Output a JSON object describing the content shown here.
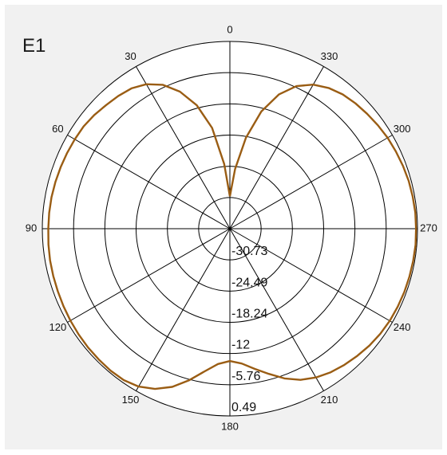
{
  "panel": {
    "title": "E1"
  },
  "chart_data": {
    "type": "polar",
    "title": "E1",
    "angle_labels": [
      "0",
      "30",
      "60",
      "90",
      "120",
      "150",
      "180",
      "210",
      "240",
      "270",
      "300",
      "330"
    ],
    "angle_direction": "counterclockwise",
    "zero_position": "top",
    "radial_ticks": [
      "-30.73",
      "-24.49",
      "-18.24",
      "-12",
      "-5.76",
      "0.49"
    ],
    "radial_range": [
      -36.97,
      0.49
    ],
    "grid": true,
    "series": [
      {
        "color": "#9a5d14",
        "angles_deg": [
          0,
          5,
          10,
          15,
          20,
          25,
          30,
          35,
          40,
          45,
          50,
          55,
          60,
          65,
          70,
          75,
          80,
          85,
          90,
          95,
          100,
          105,
          110,
          115,
          120,
          125,
          130,
          135,
          140,
          145,
          150,
          155,
          160,
          165,
          170,
          175,
          180,
          185,
          190,
          195,
          200,
          205,
          210,
          215,
          220,
          225,
          230,
          235,
          240,
          245,
          250,
          255,
          260,
          265,
          270,
          275,
          280,
          285,
          290,
          295,
          300,
          305,
          310,
          315,
          320,
          325,
          330,
          335,
          340,
          345,
          350,
          355,
          360
        ],
        "values_db": [
          -30.5,
          -24.0,
          -16.5,
          -11.4,
          -7.8,
          -5.2,
          -3.6,
          -2.7,
          -2.3,
          -2.0,
          -1.6,
          -1.3,
          -1.2,
          -1.1,
          -1.0,
          -0.9,
          -0.8,
          -0.75,
          -0.7,
          -0.6,
          -0.5,
          -0.45,
          -0.4,
          -0.3,
          -0.2,
          -0.1,
          0.0,
          0.05,
          0.1,
          0.0,
          -0.5,
          -1.6,
          -3.3,
          -5.6,
          -8.0,
          -9.8,
          -10.5,
          -9.9,
          -8.5,
          -6.9,
          -5.1,
          -3.6,
          -2.6,
          -1.9,
          -1.4,
          -1.0,
          -0.6,
          -0.3,
          -0.1,
          0.0,
          0.1,
          0.15,
          0.2,
          0.25,
          0.2,
          0.2,
          0.1,
          0.0,
          -0.2,
          -0.4,
          -0.6,
          -0.9,
          -1.2,
          -1.5,
          -1.9,
          -2.6,
          -3.7,
          -5.5,
          -8.4,
          -12.7,
          -18.5,
          -25.0,
          -30.5
        ]
      }
    ]
  }
}
